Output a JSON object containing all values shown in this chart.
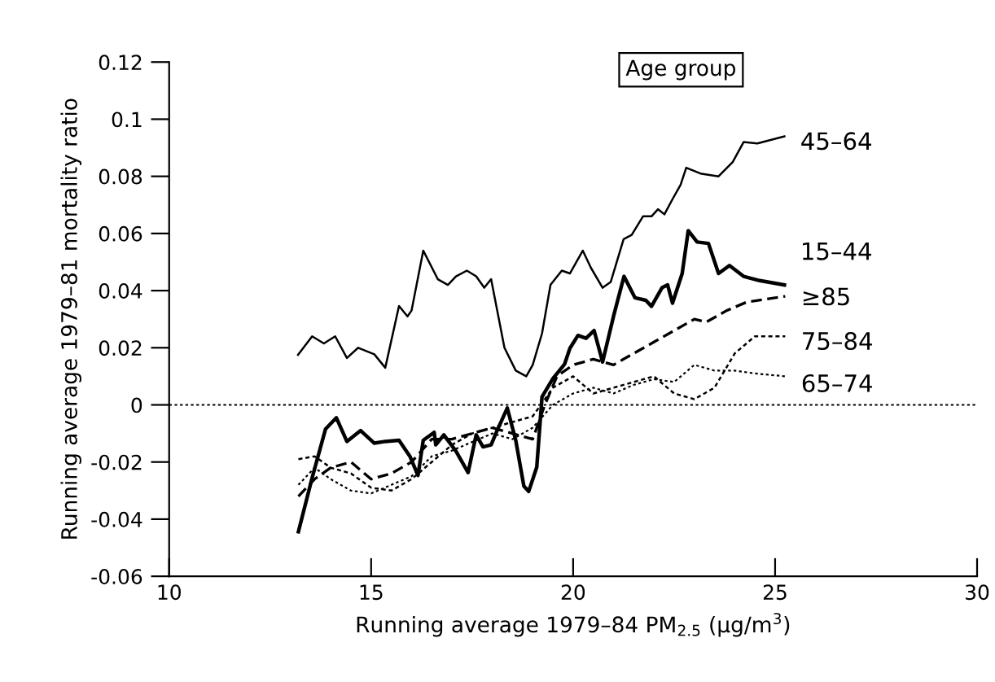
{
  "chart_data": {
    "type": "line",
    "xlabel": "Running average 1979–84 PM$_{2.5}$ (μg/m$^{3}$)",
    "ylabel": "Running average 1979–81 mortality ratio",
    "legend_title": "Age group",
    "legend": false,
    "xlim": [
      10,
      30
    ],
    "xticks": [
      10,
      15,
      20,
      25,
      30
    ],
    "ylim": [
      -0.06,
      0.12
    ],
    "yticks": [
      -0.06,
      -0.04,
      -0.02,
      0,
      0.02,
      0.04,
      0.06,
      0.08,
      0.1,
      0.12
    ],
    "grid": false,
    "ref_lines": [
      {
        "axis": "y",
        "value": 0,
        "line_style": "dotted",
        "color": "#000000"
      }
    ],
    "series": [
      {
        "name": "45–64",
        "color": "#000000",
        "line_style": "solid",
        "x": [
          13.19,
          13.54,
          13.83,
          14.11,
          14.4,
          14.68,
          15.08,
          15.35,
          15.69,
          15.9,
          16.0,
          16.29,
          16.65,
          16.9,
          17.1,
          17.37,
          17.6,
          17.8,
          17.97,
          18.3,
          18.58,
          18.84,
          19.0,
          19.23,
          19.44,
          19.72,
          19.92,
          20.24,
          20.44,
          20.73,
          20.93,
          21.25,
          21.45,
          21.73,
          21.94,
          22.1,
          22.26,
          22.46,
          22.66,
          22.8,
          23.15,
          23.6,
          23.95,
          24.22,
          24.56,
          25.23
        ],
        "values": [
          0.0175,
          0.024,
          0.0215,
          0.024,
          0.0164,
          0.02,
          0.0177,
          0.013,
          0.0346,
          0.031,
          0.033,
          0.054,
          0.044,
          0.042,
          0.045,
          0.047,
          0.045,
          0.041,
          0.044,
          0.02,
          0.012,
          0.01,
          0.014,
          0.025,
          0.042,
          0.047,
          0.046,
          0.054,
          0.048,
          0.041,
          0.043,
          0.058,
          0.0595,
          0.066,
          0.066,
          0.0685,
          0.0667,
          0.072,
          0.077,
          0.083,
          0.081,
          0.08,
          0.085,
          0.092,
          0.0915,
          0.094
        ]
      },
      {
        "name": "15–44",
        "color": "#000000",
        "line_style": "solid",
        "x": [
          13.2,
          13.54,
          13.87,
          14.14,
          14.4,
          14.74,
          15.08,
          15.35,
          15.69,
          15.96,
          16.16,
          16.29,
          16.56,
          16.6,
          16.8,
          17.1,
          17.4,
          17.6,
          17.77,
          17.97,
          18.1,
          18.37,
          18.58,
          18.78,
          18.9,
          19.1,
          19.23,
          19.5,
          19.79,
          19.92,
          20.12,
          20.32,
          20.52,
          20.73,
          21.0,
          21.26,
          21.53,
          21.8,
          21.94,
          22.2,
          22.34,
          22.46,
          22.7,
          22.85,
          23.07,
          23.35,
          23.6,
          23.87,
          24.22,
          24.62,
          25.23
        ],
        "values": [
          -0.0444,
          -0.0255,
          -0.0085,
          -0.0045,
          -0.0128,
          -0.009,
          -0.0134,
          -0.0128,
          -0.0124,
          -0.018,
          -0.0247,
          -0.0124,
          -0.0096,
          -0.014,
          -0.0105,
          -0.0162,
          -0.0237,
          -0.0105,
          -0.0147,
          -0.014,
          -0.0096,
          -0.0011,
          -0.0124,
          -0.0284,
          -0.0303,
          -0.0218,
          0.0028,
          0.0092,
          0.0143,
          0.0198,
          0.0243,
          0.0233,
          0.026,
          0.015,
          0.031,
          0.045,
          0.0375,
          0.0366,
          0.0345,
          0.041,
          0.042,
          0.0356,
          0.046,
          0.061,
          0.057,
          0.0565,
          0.046,
          0.0488,
          0.045,
          0.0435,
          0.042
        ]
      },
      {
        "name": "≥85",
        "color": "#000000",
        "line_style": "dashed",
        "x": [
          13.2,
          13.6,
          14.0,
          14.5,
          15.0,
          15.5,
          16.0,
          16.5,
          17.0,
          17.5,
          18.0,
          18.5,
          19.0,
          19.3,
          19.6,
          20.0,
          20.5,
          21.0,
          21.5,
          22.0,
          22.5,
          23.0,
          23.3,
          23.8,
          24.3,
          25.25
        ],
        "values": [
          -0.032,
          -0.026,
          -0.022,
          -0.02,
          -0.026,
          -0.024,
          -0.02,
          -0.012,
          -0.012,
          -0.01,
          -0.008,
          -0.01,
          -0.012,
          0.0,
          0.01,
          0.014,
          0.016,
          0.014,
          0.018,
          0.022,
          0.026,
          0.03,
          0.029,
          0.033,
          0.036,
          0.038
        ]
      },
      {
        "name": "75–84",
        "color": "#000000",
        "line_style": "dashed",
        "x": [
          13.2,
          13.6,
          14.0,
          14.5,
          15.0,
          15.5,
          16.0,
          16.5,
          17.0,
          17.5,
          18.0,
          18.5,
          19.0,
          19.5,
          20.0,
          20.5,
          21.0,
          21.5,
          22.0,
          22.5,
          23.0,
          23.5,
          24.0,
          24.5,
          25.25
        ],
        "values": [
          -0.019,
          -0.018,
          -0.022,
          -0.024,
          -0.029,
          -0.03,
          -0.026,
          -0.02,
          -0.014,
          -0.01,
          -0.008,
          -0.006,
          -0.004,
          0.006,
          0.01,
          0.004,
          0.006,
          0.008,
          0.01,
          0.004,
          0.002,
          0.006,
          0.018,
          0.024,
          0.024
        ]
      },
      {
        "name": "65–74",
        "color": "#000000",
        "line_style": "dotted",
        "x": [
          13.2,
          13.6,
          14.0,
          14.5,
          15.0,
          15.5,
          16.0,
          16.5,
          17.0,
          17.5,
          18.0,
          18.5,
          19.0,
          19.5,
          20.0,
          20.5,
          21.0,
          21.5,
          22.0,
          22.5,
          23.0,
          23.5,
          24.0,
          24.5,
          25.25
        ],
        "values": [
          -0.028,
          -0.022,
          -0.026,
          -0.03,
          -0.031,
          -0.028,
          -0.025,
          -0.018,
          -0.016,
          -0.013,
          -0.01,
          -0.012,
          -0.008,
          0.0,
          0.004,
          0.006,
          0.004,
          0.007,
          0.009,
          0.008,
          0.014,
          0.012,
          0.012,
          0.011,
          0.01
        ]
      }
    ]
  }
}
